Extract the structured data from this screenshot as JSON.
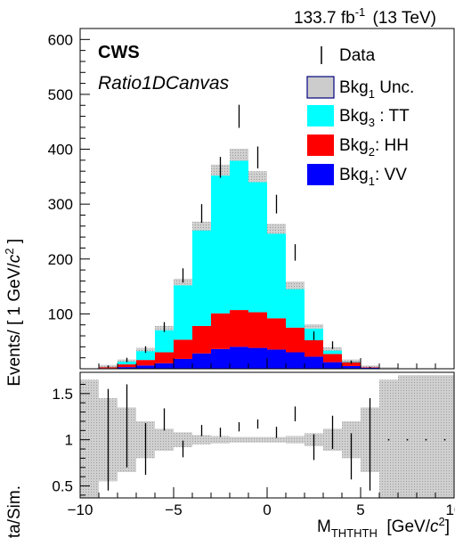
{
  "header": {
    "lumi_value": "133.7 fb",
    "lumi_exp": "-1",
    "lumi_energy": "(13 TeV)"
  },
  "labels": {
    "brand": "CWS",
    "canvas_name": "Ratio1DCanvas"
  },
  "colors": {
    "bkg3": "#00ffff",
    "bkg2": "#ff0000",
    "bkg1": "#0000ff",
    "unc_fill": "#cccccc",
    "unc_border": "#000080",
    "data": "#000000"
  },
  "chart_data": [
    {
      "id": "top",
      "type": "bar",
      "title": "",
      "xlim": [
        -10,
        10
      ],
      "ylim": [
        0,
        620
      ],
      "ylabel": {
        "main": "Events/ [ 1 GeV/",
        "var": "c",
        "exp": "2",
        "close": " ]"
      },
      "y_ticks": [
        100,
        200,
        300,
        400,
        500,
        600
      ],
      "bin_edges": [
        -10,
        -9,
        -8,
        -7,
        -6,
        -5,
        -4,
        -3,
        -2,
        -1,
        0,
        1,
        2,
        3,
        4,
        5,
        6,
        7,
        8,
        9,
        10
      ],
      "series": [
        {
          "name": "Bkg1: VV",
          "sub": "1",
          "legend_name": "Bkg",
          "legend_suffix": ": VV",
          "values": [
            0,
            1,
            3,
            6,
            10,
            18,
            28,
            36,
            40,
            38,
            35,
            30,
            22,
            12,
            5,
            2,
            1,
            0,
            0,
            0
          ]
        },
        {
          "name": "Bkg2: HH",
          "sub": "2",
          "legend_name": "Bkg",
          "legend_suffix": ": HH",
          "values": [
            0,
            2,
            5,
            10,
            20,
            35,
            50,
            65,
            67,
            65,
            57,
            45,
            30,
            15,
            7,
            2,
            1,
            0,
            0,
            0
          ]
        },
        {
          "name": "Bkg3: TT",
          "sub": "3",
          "legend_name": "Bkg",
          "legend_suffix": " : TT",
          "values": [
            0,
            2,
            7,
            19,
            44,
            105,
            182,
            261,
            283,
            247,
            163,
            77,
            25,
            9,
            3,
            1,
            0,
            0,
            0,
            0
          ]
        }
      ],
      "uncertainty": {
        "name": "Bkg1 Unc.",
        "legend_name": "Bkg",
        "sub": "1",
        "legend_suffix": " Unc.",
        "halfwidth": [
          1,
          2,
          2,
          3,
          4,
          6,
          8,
          10,
          11,
          10,
          9,
          7,
          4,
          3,
          2,
          1,
          1,
          1,
          1,
          1
        ]
      },
      "data_points": {
        "name": "Data",
        "x": [
          -9.5,
          -8.5,
          -7.5,
          -6.5,
          -5.5,
          -4.5,
          -3.5,
          -2.5,
          -1.5,
          -0.5,
          0.5,
          1.5,
          2.5,
          3.5,
          4.5,
          5.5,
          6.5,
          7.5,
          8.5,
          9.5
        ],
        "y": [
          0,
          4,
          16,
          35,
          76,
          170,
          283,
          367,
          460,
          385,
          300,
          212,
          60,
          43,
          12,
          2,
          0,
          0,
          0,
          0
        ],
        "err": [
          0,
          2,
          4,
          6,
          9,
          13,
          17,
          19,
          21,
          20,
          17,
          15,
          8,
          7,
          3,
          1.5,
          0,
          0,
          0,
          0
        ]
      },
      "legend_position": "top-right"
    },
    {
      "id": "ratio",
      "type": "scatter",
      "ylabel": "Data/Sim.",
      "xlabel": {
        "main": "M",
        "sub": "THTHTH",
        "unit": "  [GeV/",
        "var": "c",
        "exp": "2",
        "close": "]"
      },
      "xlim": [
        -10,
        10
      ],
      "ylim": [
        0.37,
        1.73
      ],
      "x_ticks": [
        -10,
        -5,
        0,
        5,
        10
      ],
      "y_ticks": [
        0.5,
        1,
        1.5
      ],
      "band_halfwidth": [
        0.65,
        0.45,
        0.35,
        0.2,
        0.12,
        0.08,
        0.05,
        0.04,
        0.03,
        0.03,
        0.03,
        0.04,
        0.07,
        0.12,
        0.2,
        0.35,
        0.65,
        0.7,
        0.7,
        0.7
      ],
      "points": {
        "x": [
          -8.5,
          -7.5,
          -6.5,
          -5.5,
          -4.5,
          -3.5,
          -2.5,
          -1.5,
          -0.5,
          0.5,
          1.5,
          2.5,
          3.5,
          4.5,
          5.5
        ],
        "y": [
          1.0,
          1.15,
          0.9,
          1.22,
          0.9,
          1.1,
          1.08,
          1.14,
          1.17,
          1.08,
          1.28,
          0.92,
          1.08,
          0.82,
          0.95
        ],
        "err": [
          0.55,
          0.45,
          0.28,
          0.12,
          0.09,
          0.06,
          0.05,
          0.05,
          0.05,
          0.06,
          0.08,
          0.14,
          0.18,
          0.25,
          0.5
        ]
      },
      "marker_only_x": [
        6.5,
        7.5,
        8.5,
        9.5
      ]
    }
  ]
}
